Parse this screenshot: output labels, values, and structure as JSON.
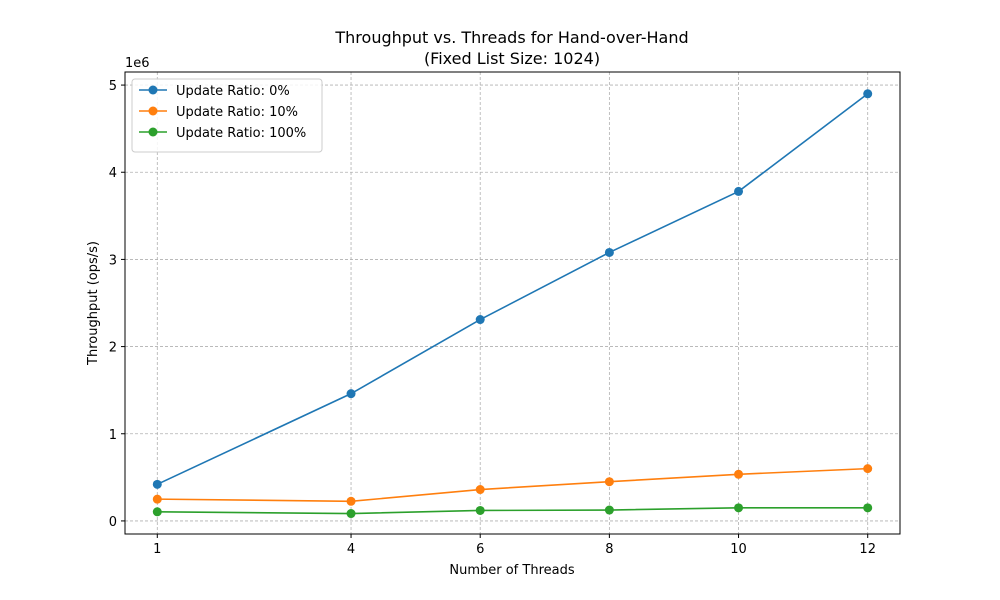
{
  "chart_data": {
    "type": "line",
    "title": "Throughput vs. Threads for Hand-over-Hand",
    "subtitle": "(Fixed List Size: 1024)",
    "xlabel": "Number of Threads",
    "ylabel": "Throughput (ops/s)",
    "y_offset_label": "1e6",
    "x": [
      1,
      4,
      6,
      8,
      10,
      12
    ],
    "x_ticks": [
      "1",
      "4",
      "6",
      "8",
      "10",
      "12"
    ],
    "y_ticks": [
      "0",
      "1",
      "2",
      "3",
      "4",
      "5"
    ],
    "y_tick_values": [
      0,
      1000000,
      2000000,
      3000000,
      4000000,
      5000000
    ],
    "xlim": [
      0.5,
      12.5
    ],
    "ylim": [
      -150000,
      5150000
    ],
    "grid": true,
    "legend_position": "top-left",
    "series": [
      {
        "name": "Update Ratio: 0%",
        "color": "#1f77b4",
        "values": [
          420000,
          1460000,
          2310000,
          3080000,
          3780000,
          4900000
        ]
      },
      {
        "name": "Update Ratio: 10%",
        "color": "#ff7f0e",
        "values": [
          250000,
          225000,
          360000,
          450000,
          535000,
          600000
        ]
      },
      {
        "name": "Update Ratio: 100%",
        "color": "#2ca02c",
        "values": [
          105000,
          85000,
          120000,
          125000,
          150000,
          150000
        ]
      }
    ]
  }
}
